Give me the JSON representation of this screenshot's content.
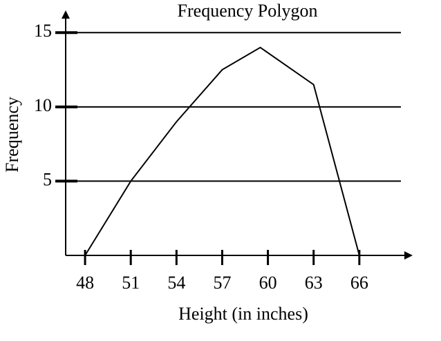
{
  "chart_data": {
    "type": "line",
    "title": "Frequency Polygon",
    "x_label": "Height (in inches)",
    "y_label": "Frequency",
    "x": [
      48,
      51,
      54,
      57,
      59.5,
      63,
      66
    ],
    "values": [
      0,
      5,
      9,
      12.5,
      14,
      11.5,
      0
    ],
    "color": "#000000",
    "xlim": [
      46.5,
      69.5
    ],
    "xticks": [
      48,
      51,
      54,
      57,
      60,
      63,
      66
    ],
    "ylim": [
      0,
      16.5
    ],
    "yticks": [
      5,
      10,
      15
    ],
    "grid": true
  }
}
